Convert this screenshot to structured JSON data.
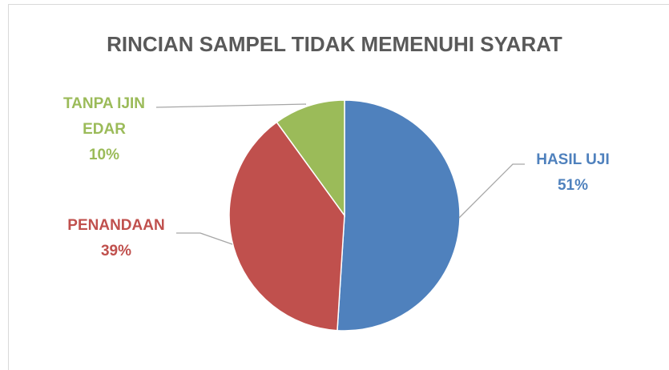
{
  "chart_data": {
    "type": "pie",
    "title": "RINCIAN SAMPEL TIDAK MEMENUHI SYARAT",
    "categories": [
      "HASIL UJI",
      "PENANDAAN",
      "TANPA IJIN EDAR"
    ],
    "values": [
      51,
      39,
      10
    ],
    "value_labels": [
      "51%",
      "39%",
      "10%"
    ],
    "colors": [
      "#4f81bd",
      "#c0504d",
      "#9bbb59"
    ]
  }
}
